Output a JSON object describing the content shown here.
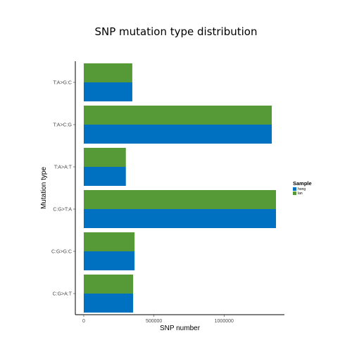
{
  "chart_data": {
    "type": "bar",
    "orientation": "horizontal",
    "title": "SNP mutation type distribution",
    "xlabel": "SNP number",
    "ylabel": "Mutation type",
    "categories": [
      "C:G>A:T",
      "C:G>G:C",
      "C:G>T:A",
      "T:A>A:T",
      "T:A>C:G",
      "T:A>G:C"
    ],
    "series": [
      {
        "name": "hong",
        "color": "#0070c0",
        "values": [
          352000,
          362000,
          1370000,
          300000,
          1340000,
          346000
        ]
      },
      {
        "name": "lan",
        "color": "#559a37",
        "values": [
          352000,
          362000,
          1370000,
          300000,
          1340000,
          346000
        ]
      }
    ],
    "xlim": [
      -60000,
      1430000
    ],
    "x_ticks": [
      0,
      500000,
      1000000
    ],
    "x_tick_labels": [
      "0",
      "500000",
      "1000000"
    ],
    "legend_title": "Sample",
    "legend_position": "right",
    "grid": false
  }
}
